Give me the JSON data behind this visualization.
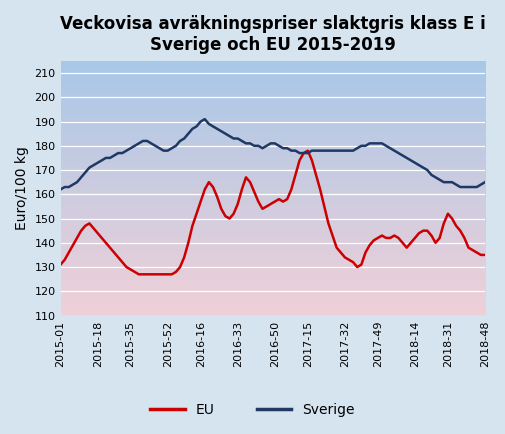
{
  "title": "Veckovisa avräkningspriser slaktgris klass E i\nSverige och EU 2015-2019",
  "ylabel": "Euro/100 kg",
  "ylim": [
    110,
    215
  ],
  "yticks": [
    110,
    120,
    130,
    140,
    150,
    160,
    170,
    180,
    190,
    200,
    210
  ],
  "bg_outer": "#d6e4f0",
  "bg_plot_top": "#a8c8e8",
  "bg_plot_bottom": "#f0d0d8",
  "grid_color": "#ffffff",
  "title_fontsize": 12,
  "label_fontsize": 10,
  "tick_fontsize": 8,
  "xtick_labels": [
    "2015-01",
    "2015-18",
    "2015-35",
    "2015-52",
    "2016-16",
    "2016-33",
    "2016-50",
    "2017-15",
    "2017-32",
    "2017-49",
    "2018-14",
    "2018-31",
    "2018-48"
  ],
  "eu_color": "#CC0000",
  "sverige_color": "#1F3864",
  "line_width": 1.8,
  "eu_data": [
    131,
    133,
    136,
    139,
    142,
    145,
    147,
    148,
    146,
    144,
    142,
    140,
    138,
    136,
    134,
    132,
    130,
    129,
    128,
    127,
    127,
    127,
    127,
    127,
    127,
    127,
    127,
    127,
    128,
    130,
    134,
    140,
    147,
    152,
    157,
    162,
    165,
    163,
    159,
    154,
    151,
    150,
    152,
    156,
    162,
    167,
    165,
    161,
    157,
    154,
    155,
    156,
    157,
    158,
    157,
    158,
    162,
    168,
    174,
    177,
    178,
    174,
    168,
    162,
    155,
    148,
    143,
    138,
    136,
    134,
    133,
    132,
    130,
    131,
    136,
    139,
    141,
    142,
    143,
    142,
    142,
    143,
    142,
    140,
    138,
    140,
    142,
    144,
    145,
    145,
    143,
    140,
    142,
    148,
    152,
    150,
    147,
    145,
    142,
    138,
    137,
    136,
    135,
    135
  ],
  "sverige_data": [
    162,
    163,
    163,
    164,
    165,
    167,
    169,
    171,
    172,
    173,
    174,
    175,
    175,
    176,
    177,
    177,
    178,
    179,
    180,
    181,
    182,
    182,
    181,
    180,
    179,
    178,
    178,
    179,
    180,
    182,
    183,
    185,
    187,
    188,
    190,
    191,
    189,
    188,
    187,
    186,
    185,
    184,
    183,
    183,
    182,
    181,
    181,
    180,
    180,
    179,
    180,
    181,
    181,
    180,
    179,
    179,
    178,
    178,
    177,
    177,
    177,
    178,
    178,
    178,
    178,
    178,
    178,
    178,
    178,
    178,
    178,
    178,
    179,
    180,
    180,
    181,
    181,
    181,
    181,
    180,
    179,
    178,
    177,
    176,
    175,
    174,
    173,
    172,
    171,
    170,
    168,
    167,
    166,
    165,
    165,
    165,
    164,
    163,
    163,
    163,
    163,
    163,
    164,
    165
  ]
}
